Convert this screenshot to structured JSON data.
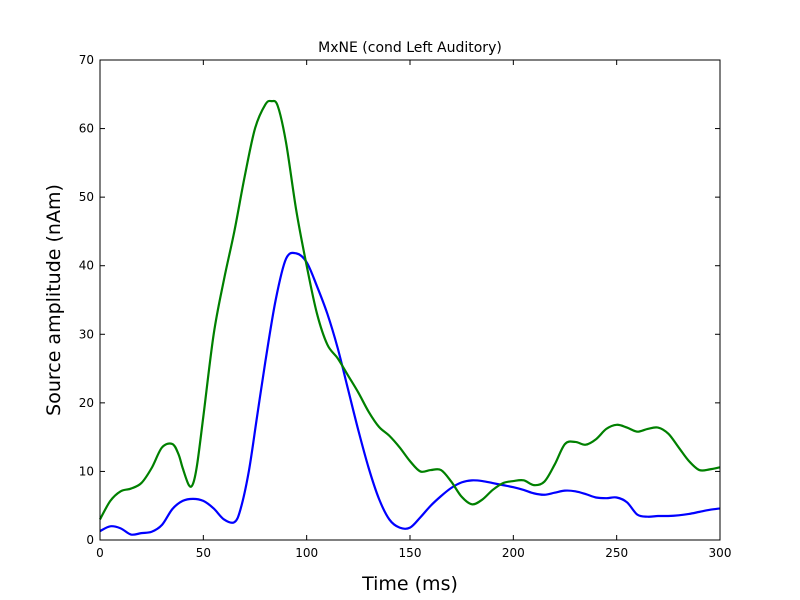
{
  "chart_data": {
    "type": "line",
    "title": "MxNE (cond Left Auditory)",
    "xlabel": "Time (ms)",
    "ylabel": "Source amplitude (nAm)",
    "xlim": [
      0,
      300
    ],
    "ylim": [
      0,
      70
    ],
    "xticks": [
      0,
      50,
      100,
      150,
      200,
      250,
      300
    ],
    "yticks": [
      0,
      10,
      20,
      30,
      40,
      50,
      60,
      70
    ],
    "grid": false,
    "legend": "none",
    "series": [
      {
        "color": "#0000ff",
        "x": [
          0,
          5,
          10,
          15,
          20,
          25,
          30,
          35,
          40,
          45,
          50,
          55,
          60,
          65,
          68,
          72,
          76,
          80,
          85,
          90,
          95,
          100,
          105,
          110,
          115,
          120,
          125,
          130,
          135,
          140,
          145,
          150,
          155,
          160,
          165,
          170,
          175,
          180,
          185,
          190,
          195,
          200,
          205,
          210,
          215,
          220,
          225,
          230,
          235,
          240,
          245,
          250,
          255,
          260,
          265,
          270,
          275,
          280,
          285,
          290,
          295,
          300
        ],
        "y": [
          1.3,
          2.0,
          1.7,
          0.8,
          1.0,
          1.2,
          2.2,
          4.5,
          5.7,
          6.0,
          5.7,
          4.6,
          3.0,
          2.6,
          4.5,
          10,
          18,
          26,
          35,
          41,
          41.8,
          40.5,
          37,
          33,
          28,
          22,
          16,
          10.5,
          6,
          3,
          1.8,
          1.8,
          3.3,
          5,
          6.4,
          7.6,
          8.4,
          8.7,
          8.6,
          8.3,
          8.0,
          7.7,
          7.3,
          6.8,
          6.6,
          6.9,
          7.2,
          7.1,
          6.7,
          6.2,
          6.1,
          6.2,
          5.5,
          3.7,
          3.4,
          3.5,
          3.5,
          3.6,
          3.8,
          4.1,
          4.4,
          4.6
        ]
      },
      {
        "color": "#008000",
        "x": [
          0,
          5,
          10,
          15,
          20,
          25,
          30,
          35,
          38,
          40,
          43,
          45,
          47,
          50,
          55,
          60,
          65,
          70,
          75,
          80,
          83,
          86,
          90,
          95,
          100,
          105,
          110,
          115,
          120,
          125,
          130,
          135,
          140,
          145,
          150,
          155,
          160,
          165,
          170,
          175,
          180,
          185,
          190,
          195,
          200,
          205,
          210,
          215,
          220,
          225,
          230,
          235,
          240,
          245,
          250,
          255,
          260,
          265,
          270,
          275,
          280,
          285,
          290,
          295,
          300
        ],
        "y": [
          3.0,
          5.7,
          7.1,
          7.5,
          8.3,
          10.5,
          13.5,
          14.0,
          12.5,
          10.5,
          8.0,
          8.2,
          11,
          18,
          30,
          38,
          45,
          53,
          60,
          63.5,
          64,
          63.3,
          58,
          48,
          40,
          33,
          28.5,
          26.5,
          24,
          21.5,
          18.7,
          16.5,
          15.2,
          13.5,
          11.5,
          10.0,
          10.2,
          10.2,
          8.5,
          6.3,
          5.2,
          5.9,
          7.3,
          8.3,
          8.6,
          8.7,
          8.0,
          8.5,
          11,
          14,
          14.3,
          13.9,
          14.7,
          16.2,
          16.8,
          16.4,
          15.8,
          16.2,
          16.4,
          15.5,
          13.5,
          11.5,
          10.2,
          10.3,
          10.6
        ]
      }
    ]
  }
}
